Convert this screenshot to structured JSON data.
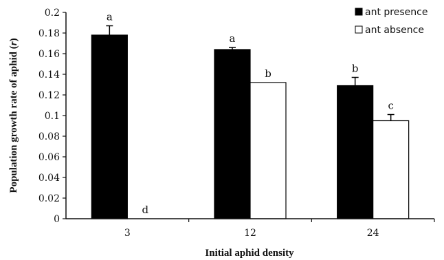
{
  "chart_data": {
    "type": "bar",
    "xlabel": "Initial aphid density",
    "ylabel": "Population growth rate of aphid (r)",
    "ylabel_main": "Population growth rate of aphid (",
    "ylabel_var": "r",
    "ylabel_close": ")",
    "ylim": [
      0,
      0.2
    ],
    "yticks": [
      "0",
      "0.02",
      "0.04",
      "0.06",
      "0.08",
      "0.1",
      "0.12",
      "0.14",
      "0.16",
      "0.18",
      "0.2"
    ],
    "categories": [
      "3",
      "12",
      "24"
    ],
    "grid": false,
    "legend_position": "top-right",
    "series": [
      {
        "name": "ant presence",
        "fill": "#000000",
        "values": [
          0.178,
          0.164,
          0.129
        ],
        "errors": [
          0.009,
          0.002,
          0.008
        ],
        "labels": [
          "a",
          "a",
          "b"
        ]
      },
      {
        "name": "ant absence",
        "fill": "#ffffff",
        "values": [
          0,
          0.132,
          0.095
        ],
        "errors": [
          0,
          0,
          0.006
        ],
        "labels": [
          "d",
          "b",
          "c"
        ]
      }
    ]
  }
}
